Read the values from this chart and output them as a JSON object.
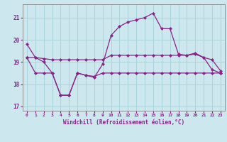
{
  "xlabel": "Windchill (Refroidissement éolien,°C)",
  "background_color": "#cce8ee",
  "grid_color": "#aad4da",
  "line_color": "#882288",
  "hours": [
    0,
    1,
    2,
    3,
    4,
    5,
    6,
    7,
    8,
    9,
    10,
    11,
    12,
    13,
    14,
    15,
    16,
    17,
    18,
    19,
    20,
    21,
    22,
    23
  ],
  "line1": [
    19.8,
    19.2,
    19.0,
    18.5,
    17.5,
    17.5,
    18.5,
    18.4,
    18.3,
    18.9,
    20.2,
    20.6,
    20.8,
    20.9,
    21.0,
    21.2,
    20.5,
    20.5,
    19.35,
    19.3,
    19.4,
    19.2,
    18.65,
    18.5
  ],
  "line2": [
    19.2,
    19.2,
    19.15,
    19.1,
    19.1,
    19.1,
    19.1,
    19.1,
    19.1,
    19.1,
    19.3,
    19.3,
    19.3,
    19.3,
    19.3,
    19.3,
    19.3,
    19.3,
    19.3,
    19.3,
    19.35,
    19.2,
    19.1,
    18.6
  ],
  "line3": [
    19.2,
    18.5,
    18.5,
    18.5,
    17.5,
    17.5,
    18.5,
    18.4,
    18.35,
    18.5,
    18.5,
    18.5,
    18.5,
    18.5,
    18.5,
    18.5,
    18.5,
    18.5,
    18.5,
    18.5,
    18.5,
    18.5,
    18.5,
    18.5
  ],
  "ylim": [
    16.8,
    21.6
  ],
  "yticks": [
    17,
    18,
    19,
    20,
    21
  ],
  "ytick_labels": [
    "17",
    "18",
    "19",
    "20",
    "21"
  ]
}
